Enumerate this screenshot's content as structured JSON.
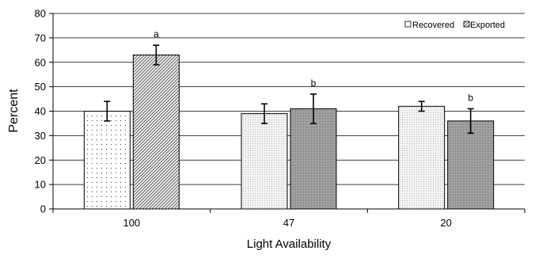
{
  "chart_data": {
    "type": "bar",
    "categories": [
      "100",
      "47",
      "20"
    ],
    "xlabel": "Light Availability",
    "ylabel": "Percent",
    "ylim": [
      0,
      80
    ],
    "yticks": [
      0,
      10,
      20,
      30,
      40,
      50,
      60,
      70,
      80
    ],
    "grid": true,
    "legend_position": "top-right",
    "series": [
      {
        "name": "Recovered",
        "values": [
          40,
          39,
          42
        ],
        "errors": [
          4,
          4,
          2
        ]
      },
      {
        "name": "Exported",
        "values": [
          63,
          41,
          36
        ],
        "errors": [
          4,
          6,
          5
        ]
      }
    ],
    "annotations": [
      "a",
      "b",
      "b"
    ]
  }
}
